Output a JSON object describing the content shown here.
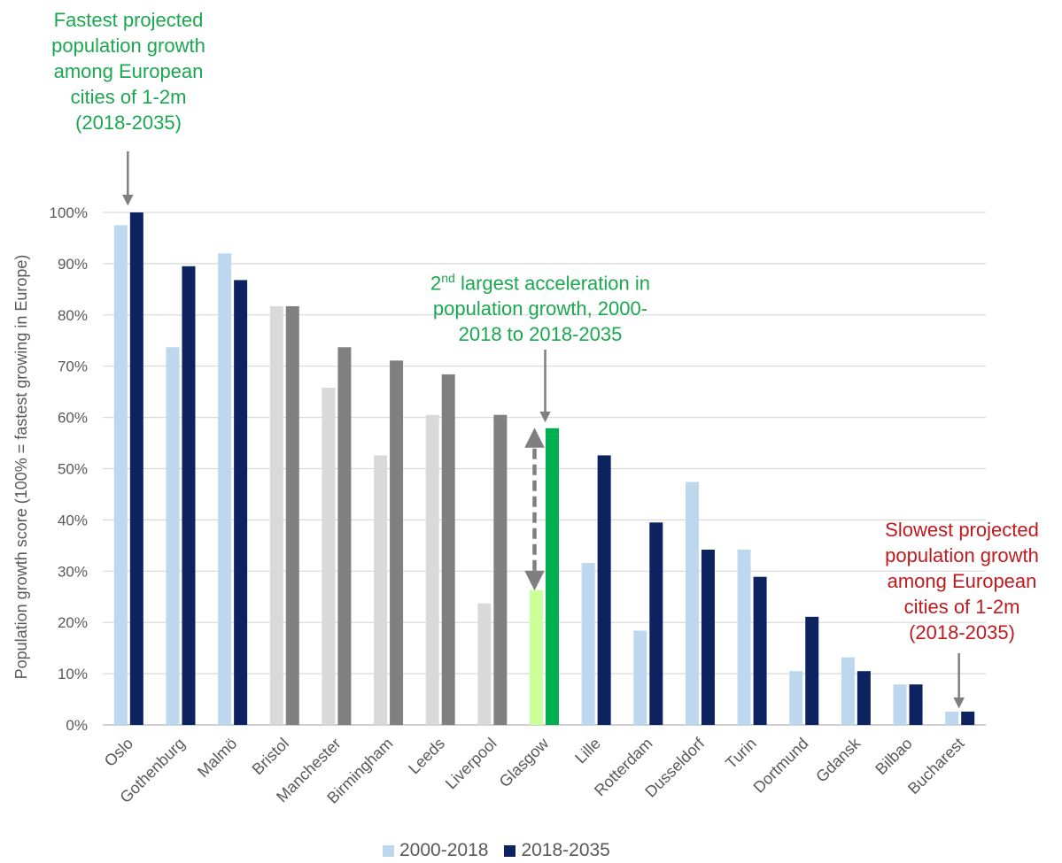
{
  "annotations": {
    "oslo_lines": [
      "Fastest projected",
      "population growth",
      "among European",
      "cities of 1-2m",
      "(2018-2035)"
    ],
    "glasgow_prefix": "2",
    "glasgow_sup": "nd",
    "glasgow_line1_rest": " largest acceleration in",
    "glasgow_line2": "population growth, 2000-",
    "glasgow_line3": "2018 to 2018-2035",
    "bucharest_lines": [
      "Slowest projected",
      "population growth",
      "among European",
      "cities of 1-2m",
      "(2018-2035)"
    ]
  },
  "colors": {
    "green_text": "#1aa84f",
    "red_text": "#c0191e",
    "light_blue": "#bdd7ee",
    "dark_navy": "#0d2261",
    "light_grey": "#d9d9d9",
    "dark_grey": "#808080",
    "light_green": "#ccff99",
    "green": "#00b050",
    "arrow": "#7f7f7f",
    "grid": "#d9d9d9"
  },
  "chart_data": {
    "type": "bar",
    "ylabel": "Population growth score (100% = fastest growing in Europe)",
    "ylim": [
      0,
      100
    ],
    "yticks": [
      "0%",
      "10%",
      "20%",
      "30%",
      "40%",
      "50%",
      "60%",
      "70%",
      "80%",
      "90%",
      "100%"
    ],
    "grid": true,
    "legend_position": "bottom",
    "categories": [
      "Oslo",
      "Gothenburg",
      "Malmö",
      "Bristol",
      "Manchester",
      "Birmingham",
      "Leeds",
      "Liverpool",
      "Glasgow",
      "Lille",
      "Rotterdam",
      "Dusseldorf",
      "Turin",
      "Dortmund",
      "Gdansk",
      "Bilbao",
      "Bucharest"
    ],
    "series": [
      {
        "name": "2000-2018",
        "values": [
          97.5,
          73.7,
          92.0,
          81.7,
          65.8,
          52.6,
          60.5,
          23.7,
          26.3,
          31.6,
          18.4,
          47.4,
          34.2,
          10.5,
          13.2,
          7.9,
          2.6
        ]
      },
      {
        "name": "2018-2035",
        "values": [
          100.0,
          89.5,
          86.8,
          81.7,
          73.7,
          71.1,
          68.4,
          60.5,
          57.9,
          52.6,
          39.5,
          34.2,
          28.9,
          21.1,
          10.5,
          7.9,
          2.6
        ]
      }
    ],
    "bar_styles": [
      "uk_blue",
      "uk_blue",
      "uk_blue",
      "uk_grey",
      "uk_grey",
      "uk_grey",
      "uk_grey",
      "uk_grey",
      "highlight_green",
      "uk_blue",
      "uk_blue",
      "uk_blue",
      "uk_blue",
      "uk_blue",
      "uk_blue",
      "uk_blue",
      "uk_blue"
    ],
    "style_colors": {
      "uk_blue": [
        "#bdd7ee",
        "#0d2261"
      ],
      "uk_grey": [
        "#d9d9d9",
        "#808080"
      ],
      "highlight_green": [
        "#ccff99",
        "#00b050"
      ]
    }
  }
}
